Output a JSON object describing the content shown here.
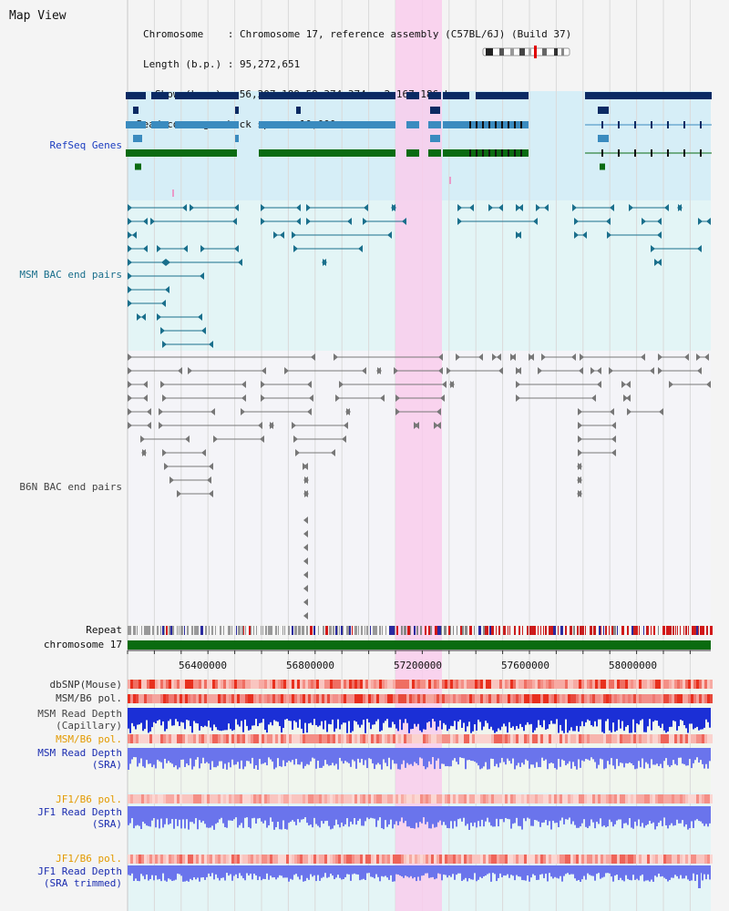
{
  "header": {
    "title": "Map View",
    "chromosome_label": "Chromosome    : Chromosome 17, reference assembly (C57BL/6J) (Build 37)",
    "length_label": "Length (b.p.) : 95,272,651",
    "show_label": "Show (b.p.) : 56,207,189-58,374,374 : 2,167,186 bp",
    "coverage_label": "Read coverage check span : 10,000"
  },
  "tracks": {
    "refseq": "RefSeq Genes",
    "msm_bac": "MSM BAC end pairs",
    "b6n_bac": "B6N BAC end pairs",
    "repeat": "Repeat",
    "chromosome": "chromosome 17",
    "dbsnp": "dbSNP(Mouse)",
    "msm_b6_pol_1": "MSM/B6 pol.",
    "msm_depth_cap_1": "MSM Read Depth",
    "msm_depth_cap_2": "(Capillary)",
    "msm_b6_pol_2": "MSM/B6 pol.",
    "msm_depth_sra_1": "MSM Read Depth",
    "msm_depth_sra_2": "(SRA)",
    "jf1_b6_pol_1": "JF1/B6 pol.",
    "jf1_depth_sra_1": "JF1 Read Depth",
    "jf1_depth_sra_2": "(SRA)",
    "jf1_b6_pol_2": "JF1/B6 pol.",
    "jf1_depth_trim_1": "JF1 Read Depth",
    "jf1_depth_trim_2": "(SRA trimmed)"
  },
  "axis": {
    "ticks": [
      "56400000",
      "56800000",
      "57200000",
      "57600000",
      "58000000"
    ]
  },
  "colors": {
    "refseq_dark": "#0b2a63",
    "refseq_mid": "#3a8bbf",
    "refseq_green": "#0a6b12",
    "msm_pair": "#1a6f8c",
    "b6n_pair": "#777777",
    "highlight": "#f9d6ef",
    "chromosome_bar": "#0a6b10",
    "depth_blue": "#1b2fd6",
    "depth_light": "#6a74ec",
    "pol_red": "#e8301e"
  }
}
